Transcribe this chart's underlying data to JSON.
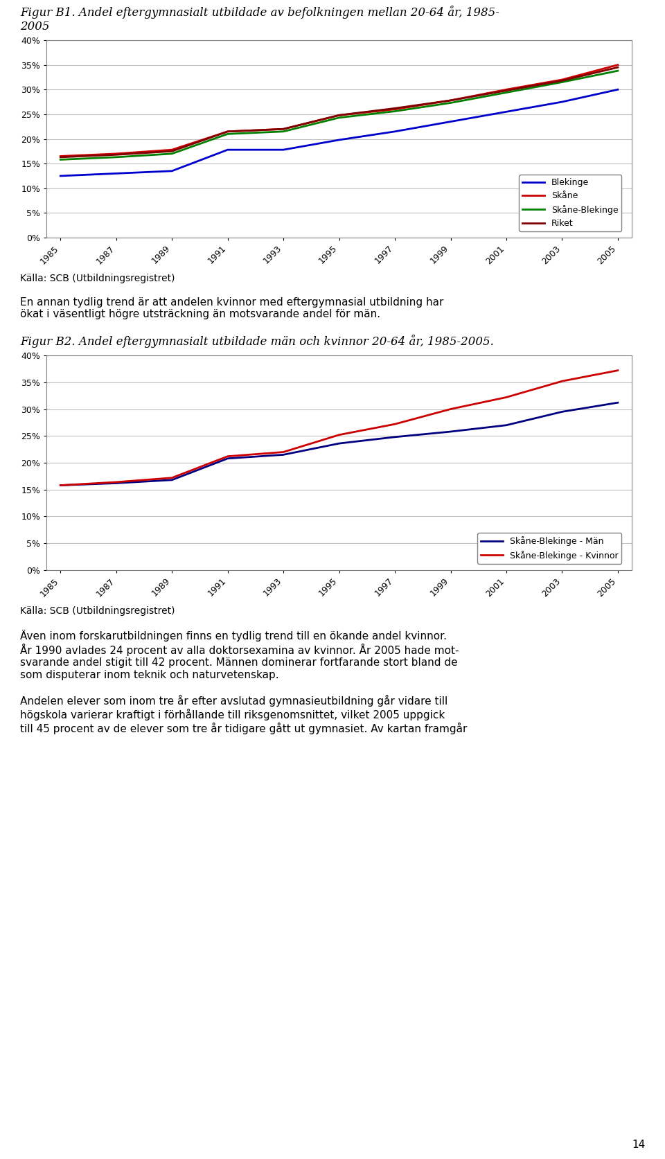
{
  "title1": "Figur B1. Andel eftergymnasialt utbildade av befolkningen mellan 20-64 år, 1985-\n2005",
  "title2": "Figur B2. Andel eftergymnasialt utbildade män och kvinnor 20-64 år, 1985-2005.",
  "caption": "Källa: SCB (Utbildningsregistret)",
  "text1": "En annan tydlig trend är att andelen kvinnor med eftergymnasial utbildning har\nökat i väsentligt högre utsträckning än motsvarande andel för män.",
  "text2": "Även inom forskarutbildningen finns en tydlig trend till en ökande andel kvinnor.\nÅr 1990 avlades 24 procent av alla doktorsexamina av kvinnor. År 2005 hade mot-\nsvarande andel stigit till 42 procent. Männen dominerar fortfarande stort bland de\nsom disputerar inom teknik och naturvetenskap.",
  "text3": "Andelen elever som inom tre år efter avslutad gymnasieutbildning går vidare till\nhögskola varierar kraftigt i förhållande till riksgenomsnittet, vilket 2005 uppgick\ntill 45 procent av de elever som tre år tidigare gått ut gymnasiet. Av kartan framgår",
  "page_number": "14",
  "years": [
    1985,
    1987,
    1989,
    1991,
    1993,
    1995,
    1997,
    1999,
    2001,
    2003,
    2005
  ],
  "chart1": {
    "blekinge": [
      0.125,
      0.13,
      0.135,
      0.178,
      0.178,
      0.198,
      0.215,
      0.235,
      0.255,
      0.275,
      0.3
    ],
    "skane": [
      0.165,
      0.17,
      0.178,
      0.215,
      0.22,
      0.248,
      0.26,
      0.278,
      0.3,
      0.32,
      0.35
    ],
    "skane_blekinge": [
      0.158,
      0.163,
      0.17,
      0.21,
      0.215,
      0.243,
      0.256,
      0.273,
      0.294,
      0.315,
      0.338
    ],
    "riket": [
      0.163,
      0.168,
      0.175,
      0.215,
      0.22,
      0.248,
      0.262,
      0.278,
      0.298,
      0.318,
      0.345
    ],
    "colors": [
      "#0000CC",
      "#CC0000",
      "#008000",
      "#800000"
    ],
    "labels": [
      "Blekinge",
      "Skåne",
      "Skåne-Blekinge",
      "Riket"
    ],
    "ylim": [
      0.0,
      0.4
    ],
    "yticks": [
      0.0,
      0.05,
      0.1,
      0.15,
      0.2,
      0.25,
      0.3,
      0.35,
      0.4
    ]
  },
  "chart2": {
    "man": [
      0.158,
      0.162,
      0.168,
      0.208,
      0.215,
      0.236,
      0.248,
      0.258,
      0.27,
      0.295,
      0.312
    ],
    "kvinnor": [
      0.158,
      0.164,
      0.172,
      0.212,
      0.22,
      0.252,
      0.272,
      0.3,
      0.322,
      0.352,
      0.372
    ],
    "colors": [
      "#000080",
      "#CC0000"
    ],
    "labels": [
      "Skåne-Blekinge - Män",
      "Skåne-Blekinge - Kvinnor"
    ],
    "ylim": [
      0.0,
      0.4
    ],
    "yticks": [
      0.0,
      0.05,
      0.1,
      0.15,
      0.2,
      0.25,
      0.3,
      0.35,
      0.4
    ]
  },
  "background_color": "#ffffff",
  "chart_bg": "#ffffff",
  "chart_border": "#808080",
  "grid_color": "#C0C0C0",
  "text_color": "#000000",
  "font_size_title": 12,
  "font_size_label": 9,
  "font_size_tick": 9,
  "font_size_text": 11,
  "font_size_caption": 10,
  "line_width": 2.0
}
